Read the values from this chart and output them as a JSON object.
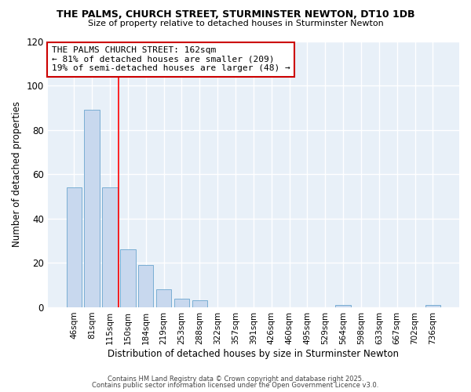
{
  "title": "THE PALMS, CHURCH STREET, STURMINSTER NEWTON, DT10 1DB",
  "subtitle": "Size of property relative to detached houses in Sturminster Newton",
  "xlabel": "Distribution of detached houses by size in Sturminster Newton",
  "ylabel": "Number of detached properties",
  "categories": [
    "46sqm",
    "81sqm",
    "115sqm",
    "150sqm",
    "184sqm",
    "219sqm",
    "253sqm",
    "288sqm",
    "322sqm",
    "357sqm",
    "391sqm",
    "426sqm",
    "460sqm",
    "495sqm",
    "529sqm",
    "564sqm",
    "598sqm",
    "633sqm",
    "667sqm",
    "702sqm",
    "736sqm"
  ],
  "values": [
    54,
    89,
    54,
    26,
    19,
    8,
    4,
    3,
    0,
    0,
    0,
    0,
    0,
    0,
    0,
    1,
    0,
    0,
    0,
    0,
    1
  ],
  "bar_color": "#c8d8ee",
  "bar_edge_color": "#7aaed4",
  "fig_bg_color": "#ffffff",
  "plot_bg_color": "#e8f0f8",
  "grid_color": "#ffffff",
  "ref_line_color": "#ff0000",
  "ref_line_x": 2.5,
  "annotation_text": "THE PALMS CHURCH STREET: 162sqm\n← 81% of detached houses are smaller (209)\n19% of semi-detached houses are larger (48) →",
  "annotation_box_facecolor": "#ffffff",
  "annotation_border_color": "#cc0000",
  "footer1": "Contains HM Land Registry data © Crown copyright and database right 2025.",
  "footer2": "Contains public sector information licensed under the Open Government Licence v3.0.",
  "ylim": [
    0,
    120
  ],
  "yticks": [
    0,
    20,
    40,
    60,
    80,
    100,
    120
  ]
}
